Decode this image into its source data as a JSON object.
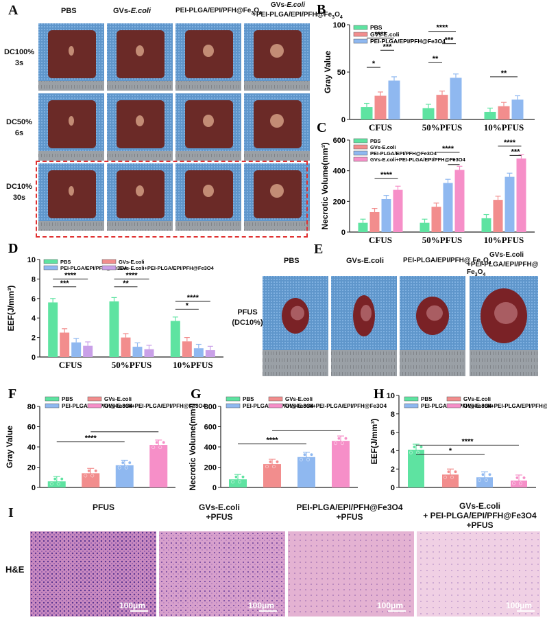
{
  "colors": {
    "green": "#5ee3a1",
    "red": "#f28d8d",
    "blue": "#8fb8f0",
    "pink": "#f68fc8",
    "purple": "#c9a0e8",
    "liver": "#6b2a27",
    "mesh": "#6fa3d4",
    "he_pink": "#d78bb9",
    "he_purple": "#6a3f9a"
  },
  "panelA": {
    "letter": "A",
    "cols": [
      "PBS",
      "GVs-",
      "PEI-PLGA/EPI/PFH@Fe",
      "GVs-"
    ],
    "col_suffix": [
      "",
      "E.coli",
      "3",
      "E.coli"
    ],
    "col4_line2": "+PEI-PLGA/EPI/PFH@Fe",
    "col4_line2_sub": "3",
    "col4_line2_end": "O",
    "col4_line2_sub2": "4",
    "col3_end": "O",
    "col3_sub2": "4",
    "rows": [
      {
        "l1": "DC100%",
        "l2": "3s"
      },
      {
        "l1": "DC50%",
        "l2": "6s"
      },
      {
        "l1": "DC10%",
        "l2": "30s"
      }
    ]
  },
  "panelE": {
    "letter": "E",
    "cols": [
      "PBS",
      "GVs-E.coli",
      "PEI-PLGA/EPI/PFH@ Fe",
      "GVs-E.coli"
    ],
    "col3_sub": "3",
    "col3_end": "O",
    "col3_sub2": "4",
    "col4_line2": "+PEI-PLGA/EPI/PFH@ Fe",
    "col4_sub": "3",
    "col4_end": "O",
    "col4_sub2": "4",
    "row_l1": "PFUS",
    "row_l2": "(DC10%)"
  },
  "panelI": {
    "letter": "I",
    "cols": [
      {
        "l1": "PFUS",
        "l2": ""
      },
      {
        "l1": "GVs-E.coli",
        "l2": "+PFUS"
      },
      {
        "l1": "PEI-PLGA/EPI/PFH@Fe3O4",
        "l2": "+PFUS"
      },
      {
        "l1": "GVs-E.coli",
        "l2": "+ PEI-PLGA/EPI/PFH@Fe3O4",
        "l3": "+PFUS"
      }
    ],
    "row": "H&E",
    "scale": "100μm"
  },
  "chart_data": [
    {
      "panel": "B",
      "type": "bar",
      "ylabel": "Gray Value",
      "ylim": [
        0,
        100
      ],
      "yticks": [
        0,
        50,
        100
      ],
      "categories": [
        "CFUS",
        "50%PFUS",
        "10%PFUS"
      ],
      "legend": [
        "PBS",
        "GVs-E.coli",
        "PEI-PLGA/EPI/PFH@Fe3O4"
      ],
      "series": [
        {
          "name": "PBS",
          "values": [
            13,
            12,
            8
          ]
        },
        {
          "name": "GVs-E.coli",
          "values": [
            25,
            26,
            14
          ]
        },
        {
          "name": "PEI-PLGA/EPI/PFH@Fe3O4",
          "values": [
            41,
            44,
            21
          ]
        }
      ],
      "sig": [
        "****",
        "***",
        "*",
        "****",
        "***",
        "**",
        "**"
      ]
    },
    {
      "panel": "C",
      "type": "bar",
      "ylabel": "Necrotic Volume(mm³)",
      "ylim": [
        0,
        600
      ],
      "yticks": [
        0,
        200,
        400,
        600
      ],
      "categories": [
        "CFUS",
        "50%PFUS",
        "10%PFUS"
      ],
      "legend": [
        "PBS",
        "GVs-E.coli",
        "PEI-PLGA/EPI/PFH@Fe3O4",
        "GVs-E.coli+PEI-PLGA/EPI/PFH@Fe3O4"
      ],
      "series": [
        {
          "name": "PBS",
          "values": [
            60,
            60,
            90
          ]
        },
        {
          "name": "GVs-E.coli",
          "values": [
            130,
            165,
            210
          ]
        },
        {
          "name": "PEI-PLGA/EPI/PFH@Fe3O4",
          "values": [
            215,
            320,
            360
          ]
        },
        {
          "name": "GVs-E.coli+PEI-PLGA/EPI/PFH@Fe3O4",
          "values": [
            275,
            405,
            480
          ]
        }
      ],
      "sig": [
        "****",
        "****",
        "*",
        "****",
        "***"
      ]
    },
    {
      "panel": "D",
      "type": "bar",
      "ylabel": "EEF(J/mm³)",
      "ylim": [
        0,
        10
      ],
      "yticks": [
        0,
        2,
        4,
        6,
        8,
        10
      ],
      "categories": [
        "CFUS",
        "50%PFUS",
        "10%PFUS"
      ],
      "legend": [
        "PBS",
        "GVs-E.coli",
        "PEI-PLGA/EPI/PFH@Fe3O4",
        "GVs-E.coli+PEI-PLGA/EPI/PFH@Fe3O4"
      ],
      "series": [
        {
          "name": "PBS",
          "values": [
            5.6,
            5.7,
            3.7
          ]
        },
        {
          "name": "GVs-E.coli",
          "values": [
            2.5,
            2.0,
            1.6
          ]
        },
        {
          "name": "PEI-PLGA/EPI/PFH@Fe3O4",
          "values": [
            1.5,
            1.05,
            0.9
          ]
        },
        {
          "name": "GVs-E.coli+PEI-PLGA/EPI/PFH@Fe3O4",
          "values": [
            1.15,
            0.8,
            0.7
          ]
        }
      ],
      "sig": [
        "****",
        "***",
        "****",
        "**",
        "****",
        "*"
      ]
    },
    {
      "panel": "F",
      "type": "bar",
      "ylabel": "Gray Value",
      "ylim": [
        0,
        80
      ],
      "yticks": [
        0,
        20,
        40,
        60,
        80
      ],
      "categories": [
        "PBS",
        "GVs-E.coli",
        "PEI-PLGA/EPI/PFH@Fe3O4",
        "GVs-E.coli+PEI-PLGA/EPI/PFH@Fe3O4"
      ],
      "legend": [
        "PBS",
        "GVs-E.coli",
        "PEI-PLGA/EPI/PFH@Fe3O4",
        "GVs-E.coli+PEI-PLGA/EPI/PFH@Fe3O4"
      ],
      "values": [
        6,
        14,
        22,
        42
      ],
      "sig": [
        "****"
      ]
    },
    {
      "panel": "G",
      "type": "bar",
      "ylabel": "Necrotic Volume(mm³)",
      "ylim": [
        0,
        800
      ],
      "yticks": [
        0,
        200,
        400,
        600,
        800
      ],
      "categories": [
        "PBS",
        "GVs-E.coli",
        "PEI-PLGA/EPI/PFH@Fe3O4",
        "GVs-E.coli+PEI-PLGA/EPI/PFH@Fe3O4"
      ],
      "legend": [
        "PBS",
        "GVs-E.coli",
        "PEI-PLGA/EPI/PFH@Fe3O4",
        "GVs-E.coli+PEI-PLGA/EPI/PFH@Fe3O4"
      ],
      "values": [
        80,
        230,
        300,
        460
      ],
      "sig": [
        "****"
      ]
    },
    {
      "panel": "H",
      "type": "bar",
      "ylabel": "EEF(J/mm³)",
      "ylim": [
        0,
        10
      ],
      "yticks": [
        0,
        2,
        4,
        6,
        8,
        10
      ],
      "categories": [
        "PBS",
        "GVs-E.coli",
        "PEI-PLGA/EPI/PFH@Fe3O4",
        "GVs-E.coli+PEI-PLGA/EPI/PFH@Fe3O4"
      ],
      "legend": [
        "PBS",
        "GVs-E.coli",
        "PEI-PLGA/EPI/PFH@Fe3O4",
        "GVs-E.coli+PEI-PLGA/EPI/PFH@Fe3O4"
      ],
      "values": [
        4.1,
        1.4,
        1.1,
        0.75
      ],
      "sig": [
        "*",
        "****"
      ]
    }
  ]
}
